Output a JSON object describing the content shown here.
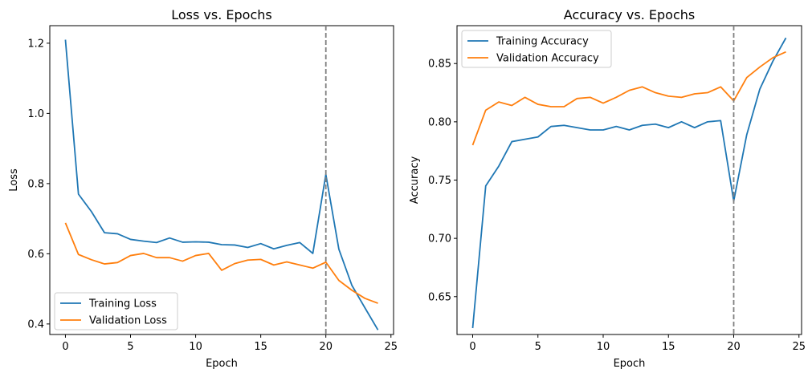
{
  "chart_data": [
    {
      "type": "line",
      "title": "Loss vs. Epochs",
      "xlabel": "Epoch",
      "ylabel": "Loss",
      "xlim": [
        -1.2,
        25.2
      ],
      "ylim": [
        0.37,
        1.25
      ],
      "xticks": [
        0,
        5,
        10,
        15,
        20,
        25
      ],
      "yticks": [
        0.4,
        0.6,
        0.8,
        1.0,
        1.2
      ],
      "ytick_labels": [
        "0.4",
        "0.6",
        "0.8",
        "1.0",
        "1.2"
      ],
      "vline": 20,
      "vline_color": "#7f7f7f",
      "legend_position": "lower-left",
      "grid": false,
      "x": [
        0,
        1,
        2,
        3,
        4,
        5,
        6,
        7,
        8,
        9,
        10,
        11,
        12,
        13,
        14,
        15,
        16,
        17,
        18,
        19,
        20,
        21,
        22,
        23,
        24
      ],
      "series": [
        {
          "name": "Training Loss",
          "color": "#1f77b4",
          "values": [
            1.21,
            0.77,
            0.72,
            0.66,
            0.657,
            0.641,
            0.636,
            0.632,
            0.645,
            0.633,
            0.634,
            0.633,
            0.626,
            0.625,
            0.618,
            0.629,
            0.614,
            0.624,
            0.632,
            0.601,
            0.826,
            0.613,
            0.51,
            0.446,
            0.383
          ]
        },
        {
          "name": "Validation Loss",
          "color": "#ff7f0e",
          "values": [
            0.688,
            0.598,
            0.583,
            0.571,
            0.575,
            0.595,
            0.601,
            0.589,
            0.589,
            0.579,
            0.595,
            0.601,
            0.553,
            0.572,
            0.582,
            0.584,
            0.568,
            0.577,
            0.568,
            0.559,
            0.576,
            0.524,
            0.496,
            0.473,
            0.459
          ]
        }
      ]
    },
    {
      "type": "line",
      "title": "Accuracy vs. Epochs",
      "xlabel": "Epoch",
      "ylabel": "Accuracy",
      "xlim": [
        -1.2,
        25.2
      ],
      "ylim": [
        0.6175,
        0.8825
      ],
      "xticks": [
        0,
        5,
        10,
        15,
        20,
        25
      ],
      "yticks": [
        0.65,
        0.7,
        0.75,
        0.8,
        0.85
      ],
      "ytick_labels": [
        "0.65",
        "0.70",
        "0.75",
        "0.80",
        "0.85"
      ],
      "vline": 20,
      "vline_color": "#7f7f7f",
      "legend_position": "upper-left",
      "grid": false,
      "x": [
        0,
        1,
        2,
        3,
        4,
        5,
        6,
        7,
        8,
        9,
        10,
        11,
        12,
        13,
        14,
        15,
        16,
        17,
        18,
        19,
        20,
        21,
        22,
        23,
        24
      ],
      "series": [
        {
          "name": "Training Accuracy",
          "color": "#1f77b4",
          "values": [
            0.623,
            0.745,
            0.762,
            0.783,
            0.785,
            0.787,
            0.796,
            0.797,
            0.795,
            0.793,
            0.793,
            0.796,
            0.793,
            0.797,
            0.798,
            0.795,
            0.8,
            0.795,
            0.8,
            0.801,
            0.732,
            0.789,
            0.828,
            0.852,
            0.872
          ]
        },
        {
          "name": "Validation Accuracy",
          "color": "#ff7f0e",
          "values": [
            0.78,
            0.81,
            0.817,
            0.814,
            0.821,
            0.815,
            0.813,
            0.813,
            0.82,
            0.821,
            0.816,
            0.821,
            0.827,
            0.83,
            0.825,
            0.822,
            0.821,
            0.824,
            0.825,
            0.83,
            0.818,
            0.838,
            0.847,
            0.855,
            0.86
          ]
        }
      ]
    }
  ]
}
